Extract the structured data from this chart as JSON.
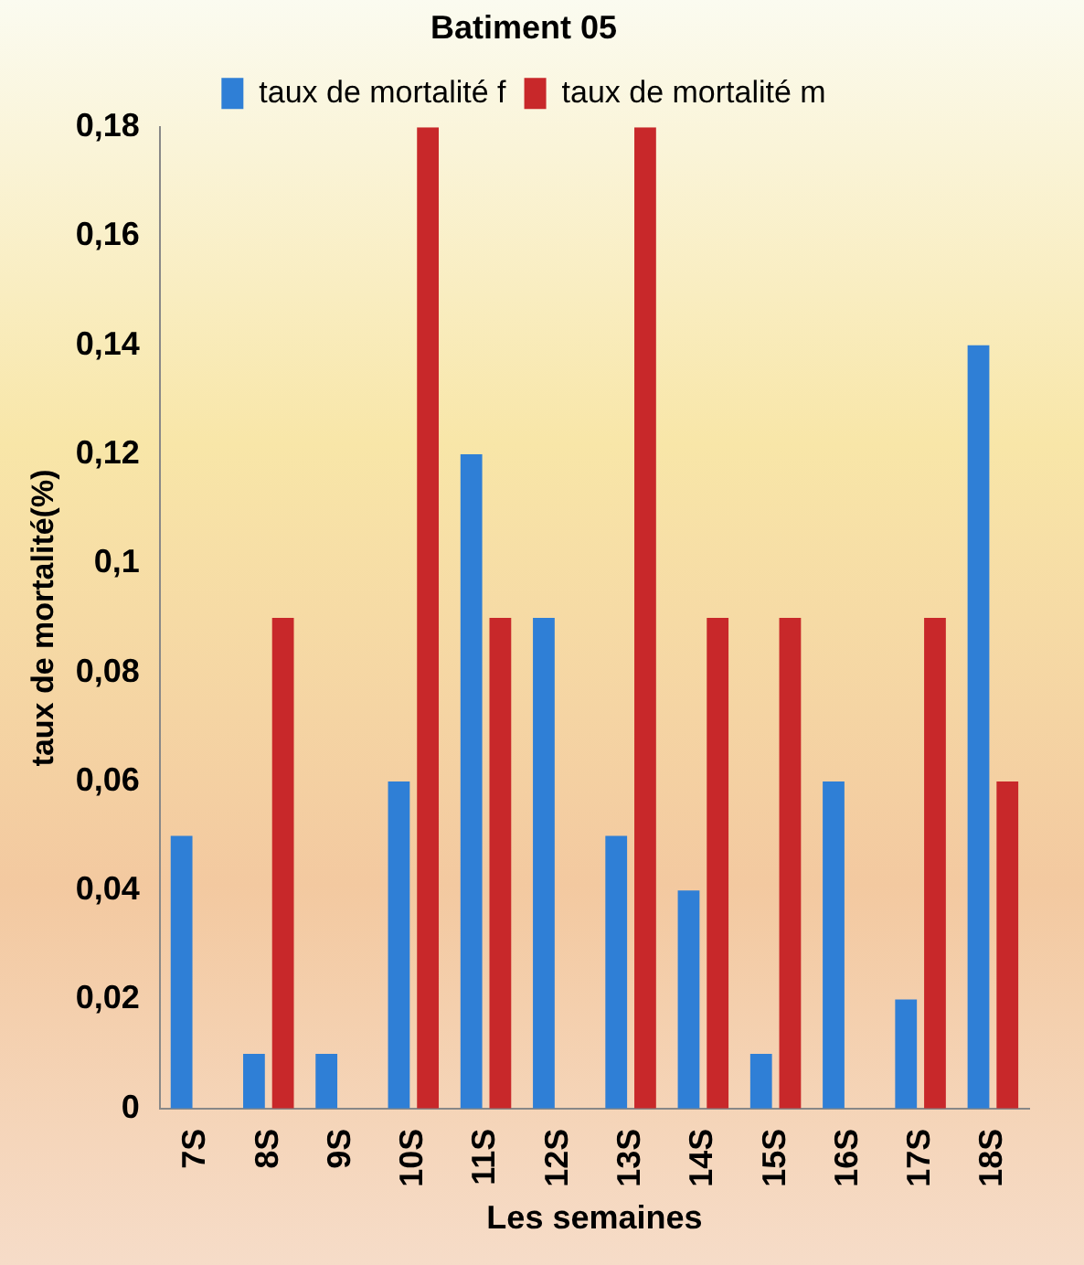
{
  "chart_data": {
    "type": "bar",
    "title": "Batiment 05",
    "xlabel": "Les semaines",
    "ylabel": "taux de mortalité(%)",
    "categories": [
      "7S",
      "8S",
      "9S",
      "10S",
      "11S",
      "12S",
      "13S",
      "14S",
      "15S",
      "16S",
      "17S",
      "18S"
    ],
    "series": [
      {
        "name": "taux de mortalité f",
        "color": "#2f7fd6",
        "values": [
          0.05,
          0.01,
          0.01,
          0.06,
          0.12,
          0.09,
          0.05,
          0.04,
          0.01,
          0.06,
          0.02,
          0.14
        ]
      },
      {
        "name": "taux de mortalité m",
        "color": "#c8282a",
        "values": [
          0,
          0.09,
          0,
          0.18,
          0.09,
          0,
          0.18,
          0.09,
          0.09,
          0,
          0.09,
          0.06
        ]
      }
    ],
    "ylim": [
      0,
      0.18
    ],
    "yticks": [
      0,
      {
        "value": 0.02,
        "label": "0,02"
      },
      {
        "value": 0.04,
        "label": "0,04"
      },
      {
        "value": 0.06,
        "label": "0,06"
      },
      {
        "value": 0.08,
        "label": "0,08"
      },
      {
        "value": 0.1,
        "label": "0,1"
      },
      {
        "value": 0.12,
        "label": "0,12"
      },
      {
        "value": 0.14,
        "label": "0,14"
      },
      {
        "value": 0.16,
        "label": "0,16"
      },
      {
        "value": 0.18,
        "label": "0,18"
      }
    ],
    "grid": false,
    "legend": "top"
  }
}
